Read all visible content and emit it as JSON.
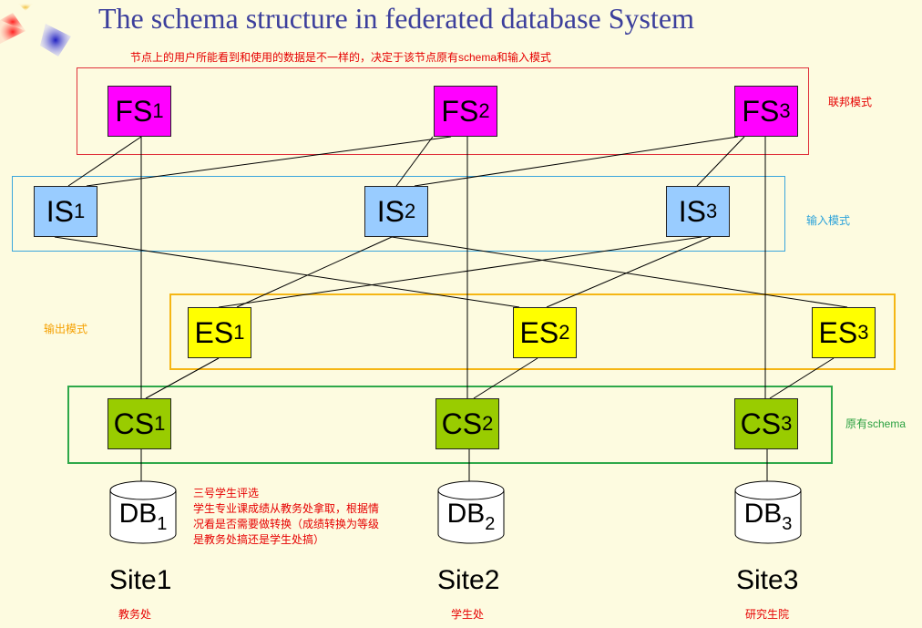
{
  "title": "The schema structure in federated database System",
  "subtitle": "节点上的用户所能看到和使用的数据是不一样的，决定于该节点原有schema和输入模式",
  "layers": {
    "federated": "联邦模式",
    "import": "输入模式",
    "export": "输出模式",
    "original": "原有schema"
  },
  "nodes": {
    "fs": [
      {
        "base": "FS",
        "sub": "1"
      },
      {
        "base": "FS",
        "sub": "2"
      },
      {
        "base": "FS",
        "sub": "3"
      }
    ],
    "is": [
      {
        "base": "IS",
        "sub": "1"
      },
      {
        "base": "IS",
        "sub": "2"
      },
      {
        "base": "IS",
        "sub": "3"
      }
    ],
    "es": [
      {
        "base": "ES",
        "sub": "1"
      },
      {
        "base": "ES",
        "sub": "2"
      },
      {
        "base": "ES",
        "sub": "3"
      }
    ],
    "cs": [
      {
        "base": "CS",
        "sub": "1"
      },
      {
        "base": "CS",
        "sub": "2"
      },
      {
        "base": "CS",
        "sub": "3"
      }
    ],
    "db": [
      {
        "base": "DB",
        "sub": "1"
      },
      {
        "base": "DB",
        "sub": "2"
      },
      {
        "base": "DB",
        "sub": "3"
      }
    ]
  },
  "sites": [
    {
      "name": "Site1",
      "office": "教务处"
    },
    {
      "name": "Site2",
      "office": "学生处"
    },
    {
      "name": "Site3",
      "office": "研究生院"
    }
  ],
  "note": [
    "三号学生评选",
    "学生专业课成绩从教务处拿取，根据情",
    "况看是否需要做转换（成绩转换为等级",
    "是教务处搞还是学生处搞）"
  ],
  "colors": {
    "fs": "#ff00ff",
    "is": "#99ccff",
    "es": "#ffff00",
    "cs": "#99cc00",
    "title": "#3c3f9c",
    "annotation": "#e60000"
  }
}
